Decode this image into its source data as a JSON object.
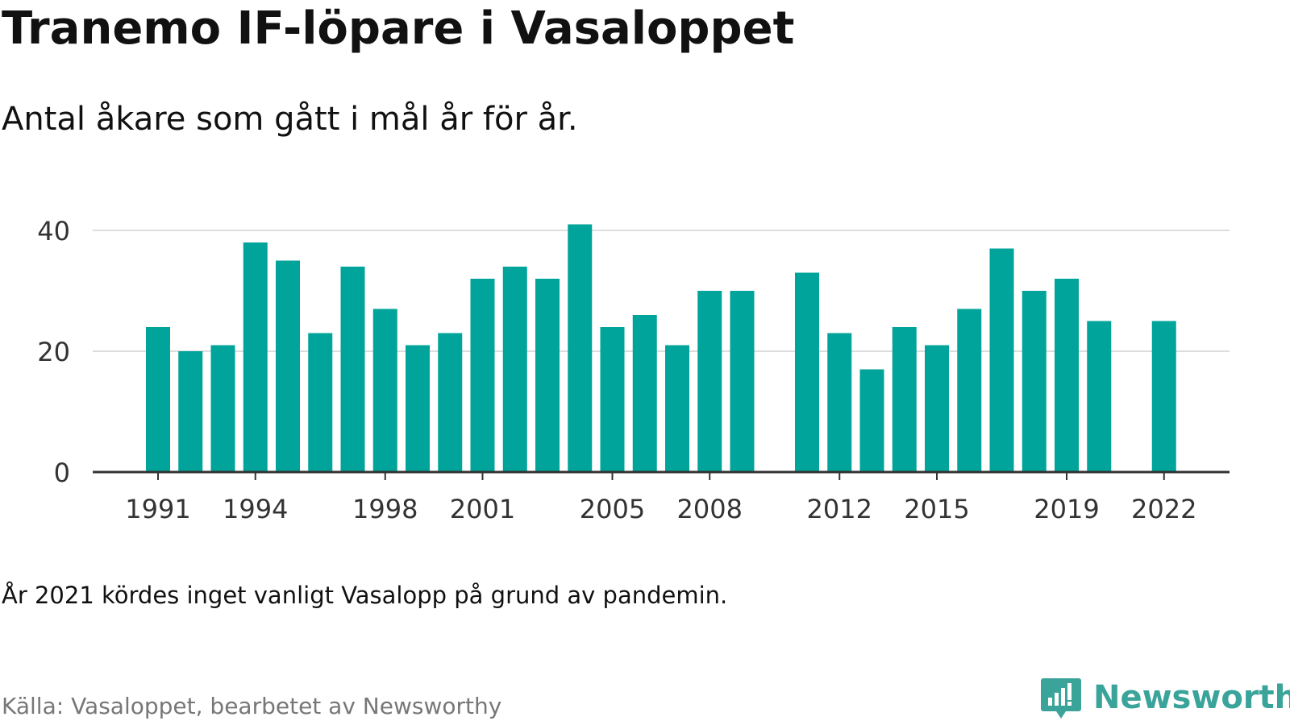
{
  "title": "Tranemo IF-löpare i Vasaloppet",
  "subtitle": "Antal åkare som gått i mål år för år.",
  "note": "År 2021 kördes inget vanligt Vasalopp på grund av pandemin.",
  "source": "Källa: Vasaloppet, bearbetet av Newsworthy",
  "brand": {
    "name": "Newsworthy",
    "icon": "newsworthy-logo-icon",
    "color": "#3aa49a"
  },
  "colors": {
    "bar": "#00a49a",
    "grid": "#dddddd",
    "axis": "#333333",
    "tick_text": "#333333"
  },
  "chart_data": {
    "type": "bar",
    "title": "",
    "xlabel": "",
    "ylabel": "",
    "categories": [
      "1991",
      "1992",
      "1993",
      "1994",
      "1995",
      "1996",
      "1997",
      "1998",
      "1999",
      "2000",
      "2001",
      "2002",
      "2003",
      "2004",
      "2005",
      "2006",
      "2007",
      "2008",
      "2009",
      "2010",
      "2011",
      "2012",
      "2013",
      "2014",
      "2015",
      "2016",
      "2017",
      "2018",
      "2019",
      "2020",
      "2021",
      "2022"
    ],
    "values": [
      24,
      20,
      21,
      38,
      35,
      23,
      34,
      27,
      21,
      23,
      32,
      34,
      32,
      41,
      24,
      26,
      21,
      30,
      30,
      null,
      33,
      23,
      17,
      24,
      21,
      27,
      37,
      30,
      32,
      25,
      null,
      25
    ],
    "x_tick_labels": [
      "1991",
      "1994",
      "1998",
      "2001",
      "2005",
      "2008",
      "2012",
      "2015",
      "2019",
      "2022"
    ],
    "y_ticks": [
      0,
      20,
      40
    ],
    "ylim": [
      0,
      41
    ],
    "grid": true,
    "legend": "none"
  }
}
